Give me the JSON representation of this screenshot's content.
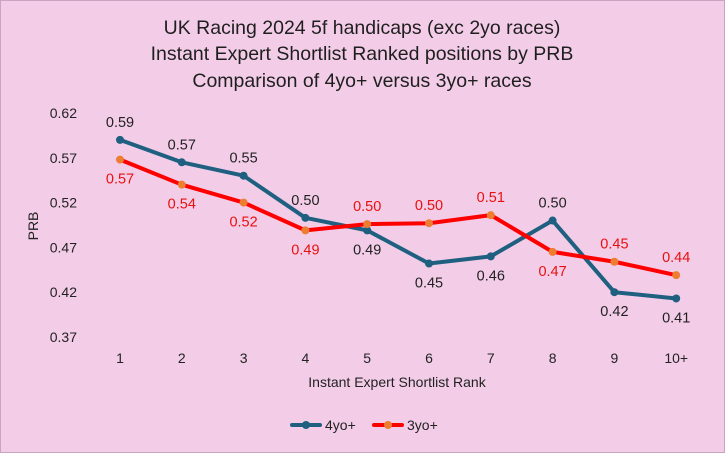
{
  "chart_data": {
    "type": "line",
    "title_lines": [
      "UK Racing 2024 5f handicaps (exc 2yo races)",
      "Instant Expert Shortlist Ranked positions by PRB",
      "Comparison of 4yo+ versus 3yo+ races"
    ],
    "xlabel": "Instant Expert Shortlist Rank",
    "ylabel": "PRB",
    "categories": [
      "1",
      "2",
      "3",
      "4",
      "5",
      "6",
      "7",
      "8",
      "9",
      "10+"
    ],
    "y_ticks": [
      "0.62",
      "0.57",
      "0.52",
      "0.47",
      "0.42",
      "0.37"
    ],
    "ylim": [
      0.37,
      0.62
    ],
    "grid": false,
    "legend_position": "bottom",
    "series": [
      {
        "name": "4yo+",
        "color": "#1f5f80",
        "label_color": "#222222",
        "values": [
          0.59,
          0.565,
          0.55,
          0.503,
          0.489,
          0.452,
          0.46,
          0.5,
          0.42,
          0.413
        ],
        "labels": [
          "0.59",
          "0.57",
          "0.55",
          "0.50",
          "0.49",
          "0.45",
          "0.46",
          "0.50",
          "0.42",
          "0.41"
        ]
      },
      {
        "name": "3yo+",
        "color": "#ff0000",
        "marker_color": "#ed7d31",
        "label_color": "#e8100e",
        "values": [
          0.568,
          0.54,
          0.52,
          0.489,
          0.496,
          0.497,
          0.506,
          0.465,
          0.454,
          0.439
        ],
        "labels": [
          "0.57",
          "0.54",
          "0.52",
          "0.49",
          "0.50",
          "0.50",
          "0.51",
          "0.47",
          "0.45",
          "0.44"
        ]
      }
    ]
  }
}
